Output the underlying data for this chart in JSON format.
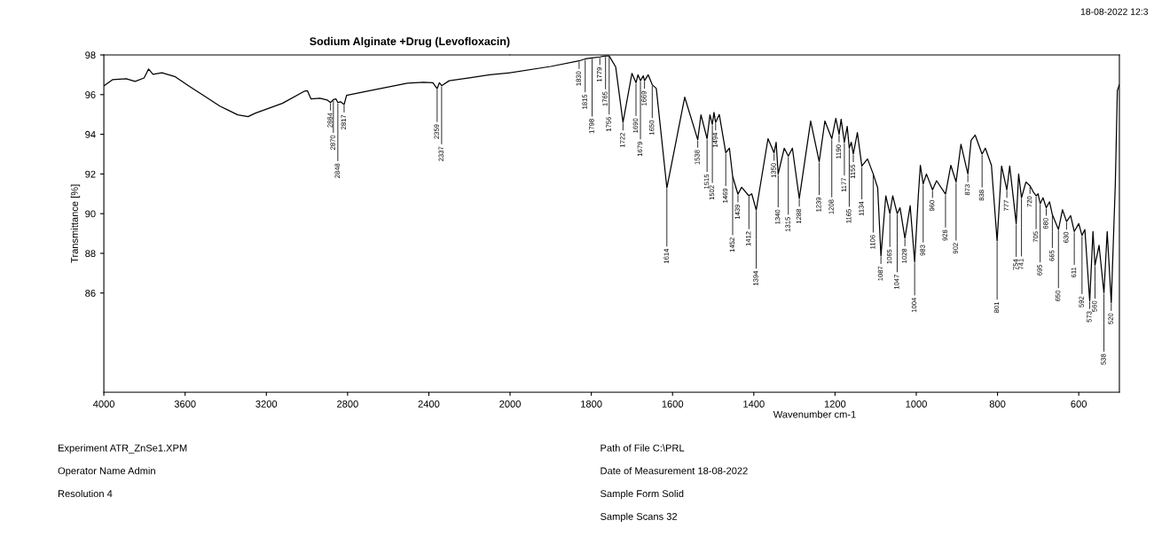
{
  "chart_data": [
    {
      "type": "line",
      "title": "Sodium Alginate +Drug (Levofloxacin)",
      "ylabel": "Transmittance [%]",
      "xlim": [
        4000,
        2000
      ],
      "xticks": [
        4000,
        3600,
        3200,
        2800,
        2400,
        2000
      ],
      "ylim": [
        81,
        98
      ],
      "yticks": [
        86,
        88,
        90,
        92,
        94,
        96,
        98
      ],
      "grid": false,
      "legend": false,
      "marker": "none",
      "line_style": "solid",
      "series": [
        {
          "color": "#000000",
          "x": [
            4000,
            3956,
            3890,
            3846,
            3802,
            3780,
            3758,
            3714,
            3648,
            3582,
            3516,
            3429,
            3341,
            3290,
            3253,
            3121,
            3011,
            2998,
            2980,
            2936,
            2901,
            2884,
            2870,
            2857,
            2848,
            2835,
            2817,
            2805,
            2681,
            2505,
            2426,
            2380,
            2359,
            2348,
            2337,
            2300,
            2200,
            2100,
            2000
          ],
          "values": [
            96.44,
            96.76,
            96.8,
            96.67,
            96.84,
            97.29,
            97.02,
            97.1,
            96.9,
            96.44,
            96.0,
            95.42,
            94.98,
            94.89,
            95.07,
            95.56,
            96.18,
            96.2,
            95.78,
            95.82,
            95.73,
            95.6,
            95.75,
            95.78,
            95.6,
            95.64,
            95.5,
            95.96,
            96.22,
            96.58,
            96.62,
            96.6,
            96.3,
            96.6,
            96.45,
            96.7,
            96.85,
            97.0,
            97.1
          ]
        }
      ],
      "annotations": [
        "18-08-2022 12:3",
        {
          "text": "2884",
          "x": 2884,
          "y": 95.6
        },
        {
          "text": "2870",
          "x": 2870,
          "y": 95.75
        },
        {
          "text": "2848",
          "x": 2848,
          "y": 95.6
        },
        {
          "text": "2817",
          "x": 2817,
          "y": 95.5
        },
        {
          "text": "2359",
          "x": 2359,
          "y": 96.3
        },
        {
          "text": "2337",
          "x": 2337,
          "y": 96.45
        },
        "Experiment ATR_ZnSe1.XPM",
        "Operator Name Admin",
        "Resolution 4",
        "Path of File C:\\PRL",
        "Date of Measurement 18-08-2022",
        "Sample Form Solid",
        "Sample Scans 32"
      ]
    },
    {
      "type": "line",
      "xlabel": "Wavenumber cm-1",
      "xlim": [
        2000,
        500
      ],
      "xticks": [
        1800,
        1600,
        1400,
        1200,
        1000,
        800,
        600
      ],
      "ylim": [
        81,
        98
      ],
      "tick_labels": "x",
      "grid": false,
      "legend": false,
      "marker": "none",
      "line_style": "solid",
      "series": [
        {
          "color": "#000000",
          "x": [
            2000,
            1900,
            1830,
            1815,
            1798,
            1779,
            1765,
            1756,
            1740,
            1722,
            1700,
            1690,
            1685,
            1679,
            1672,
            1669,
            1660,
            1650,
            1640,
            1614,
            1570,
            1538,
            1530,
            1515,
            1508,
            1502,
            1498,
            1494,
            1485,
            1469,
            1460,
            1452,
            1439,
            1430,
            1412,
            1405,
            1394,
            1365,
            1350,
            1345,
            1340,
            1325,
            1315,
            1305,
            1288,
            1260,
            1239,
            1225,
            1208,
            1198,
            1190,
            1185,
            1177,
            1170,
            1165,
            1160,
            1155,
            1145,
            1134,
            1120,
            1106,
            1095,
            1087,
            1075,
            1065,
            1058,
            1047,
            1040,
            1028,
            1015,
            1004,
            995,
            990,
            983,
            975,
            960,
            950,
            928,
            915,
            902,
            890,
            873,
            865,
            855,
            838,
            830,
            815,
            801,
            790,
            777,
            770,
            754,
            748,
            741,
            730,
            720,
            712,
            705,
            700,
            695,
            688,
            680,
            672,
            665,
            650,
            640,
            630,
            620,
            611,
            600,
            592,
            585,
            573,
            565,
            560,
            550,
            538,
            530,
            520,
            510,
            505,
            500
          ],
          "values": [
            97.1,
            97.42,
            97.7,
            97.8,
            97.85,
            97.9,
            97.95,
            97.95,
            97.4,
            94.6,
            97.07,
            96.6,
            97.0,
            96.7,
            96.95,
            96.7,
            97.0,
            96.5,
            96.31,
            91.3,
            95.87,
            93.73,
            94.98,
            93.78,
            94.98,
            94.5,
            95.1,
            94.6,
            95.0,
            93.07,
            93.3,
            91.87,
            90.98,
            91.33,
            90.9,
            91.0,
            90.18,
            93.78,
            93.07,
            93.6,
            92.0,
            93.3,
            92.9,
            93.3,
            90.76,
            94.67,
            92.62,
            94.67,
            93.78,
            94.8,
            94.0,
            94.76,
            93.6,
            94.4,
            93.3,
            93.6,
            93.0,
            94.09,
            92.4,
            92.76,
            92.0,
            91.3,
            87.87,
            90.9,
            90.0,
            90.9,
            90.0,
            90.3,
            88.76,
            90.4,
            87.56,
            90.9,
            92.44,
            91.5,
            92.0,
            91.2,
            91.66,
            90.98,
            92.44,
            91.6,
            93.5,
            92.0,
            93.7,
            93.96,
            93.0,
            93.3,
            92.44,
            88.62,
            92.4,
            91.2,
            92.4,
            89.5,
            92.0,
            90.8,
            91.6,
            91.4,
            91.1,
            90.9,
            91.0,
            90.5,
            90.8,
            90.3,
            90.6,
            89.95,
            89.2,
            90.2,
            89.6,
            89.9,
            89.1,
            89.5,
            88.9,
            89.2,
            85.6,
            89.1,
            87.4,
            88.4,
            86.0,
            89.1,
            85.5,
            91.5,
            96.2,
            96.5
          ]
        }
      ],
      "annotations": [
        {
          "text": "1830",
          "x": 1830,
          "y": 97.7
        },
        {
          "text": "1815",
          "x": 1815,
          "y": 97.8
        },
        {
          "text": "1798",
          "x": 1798,
          "y": 97.85
        },
        {
          "text": "1779",
          "x": 1779,
          "y": 97.9
        },
        {
          "text": "1765",
          "x": 1765,
          "y": 97.95
        },
        {
          "text": "1756",
          "x": 1756,
          "y": 97.95
        },
        {
          "text": "1722",
          "x": 1722,
          "y": 94.6
        },
        {
          "text": "1690",
          "x": 1690,
          "y": 96.6
        },
        {
          "text": "1679",
          "x": 1679,
          "y": 96.7
        },
        {
          "text": "1669",
          "x": 1669,
          "y": 96.7
        },
        {
          "text": "1650",
          "x": 1650,
          "y": 96.5
        },
        {
          "text": "1614",
          "x": 1614,
          "y": 91.3
        },
        {
          "text": "1538",
          "x": 1538,
          "y": 93.73
        },
        {
          "text": "1515",
          "x": 1515,
          "y": 93.78
        },
        {
          "text": "1502",
          "x": 1502,
          "y": 94.5
        },
        {
          "text": "1494",
          "x": 1494,
          "y": 94.6
        },
        {
          "text": "1469",
          "x": 1469,
          "y": 93.07
        },
        {
          "text": "1452",
          "x": 1452,
          "y": 91.87
        },
        {
          "text": "1439",
          "x": 1439,
          "y": 90.98
        },
        {
          "text": "1412",
          "x": 1412,
          "y": 90.9
        },
        {
          "text": "1394",
          "x": 1394,
          "y": 90.18
        },
        {
          "text": "1350",
          "x": 1350,
          "y": 93.07
        },
        {
          "text": "1340",
          "x": 1340,
          "y": 92.0
        },
        {
          "text": "1315",
          "x": 1315,
          "y": 92.9
        },
        {
          "text": "1288",
          "x": 1288,
          "y": 90.76
        },
        {
          "text": "1239",
          "x": 1239,
          "y": 92.62
        },
        {
          "text": "1208",
          "x": 1208,
          "y": 93.78
        },
        {
          "text": "1190",
          "x": 1190,
          "y": 94.0
        },
        {
          "text": "1177",
          "x": 1177,
          "y": 93.6
        },
        {
          "text": "1165",
          "x": 1165,
          "y": 93.3
        },
        {
          "text": "1155",
          "x": 1155,
          "y": 93.0
        },
        {
          "text": "1134",
          "x": 1134,
          "y": 92.4
        },
        {
          "text": "1106",
          "x": 1106,
          "y": 92.0
        },
        {
          "text": "1087",
          "x": 1087,
          "y": 87.87
        },
        {
          "text": "1065",
          "x": 1065,
          "y": 90.0
        },
        {
          "text": "1047",
          "x": 1047,
          "y": 90.0
        },
        {
          "text": "1028",
          "x": 1028,
          "y": 88.76
        },
        {
          "text": "1004",
          "x": 1004,
          "y": 87.56
        },
        {
          "text": "983",
          "x": 983,
          "y": 91.5
        },
        {
          "text": "960",
          "x": 960,
          "y": 91.2
        },
        {
          "text": "928",
          "x": 928,
          "y": 90.98
        },
        {
          "text": "902",
          "x": 902,
          "y": 91.6
        },
        {
          "text": "873",
          "x": 873,
          "y": 92.0
        },
        {
          "text": "838",
          "x": 838,
          "y": 93.0
        },
        {
          "text": "801",
          "x": 801,
          "y": 88.62
        },
        {
          "text": "777",
          "x": 777,
          "y": 91.2
        },
        {
          "text": "754",
          "x": 754,
          "y": 89.5
        },
        {
          "text": "741",
          "x": 741,
          "y": 90.8
        },
        {
          "text": "720",
          "x": 720,
          "y": 91.4
        },
        {
          "text": "705",
          "x": 705,
          "y": 90.9
        },
        {
          "text": "695",
          "x": 695,
          "y": 90.5
        },
        {
          "text": "680",
          "x": 680,
          "y": 90.3
        },
        {
          "text": "665",
          "x": 665,
          "y": 89.95
        },
        {
          "text": "650",
          "x": 650,
          "y": 89.2
        },
        {
          "text": "630",
          "x": 630,
          "y": 89.6
        },
        {
          "text": "611",
          "x": 611,
          "y": 89.1
        },
        {
          "text": "592",
          "x": 592,
          "y": 88.9
        },
        {
          "text": "573",
          "x": 573,
          "y": 85.6
        },
        {
          "text": "560",
          "x": 560,
          "y": 87.4
        },
        {
          "text": "538",
          "x": 538,
          "y": 86.0
        },
        {
          "text": "520",
          "x": 520,
          "y": 85.5
        }
      ]
    }
  ]
}
